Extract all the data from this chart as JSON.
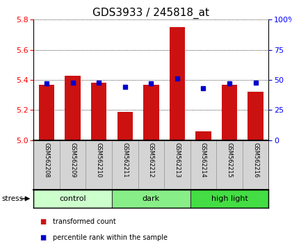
{
  "title": "GDS3933 / 245818_at",
  "samples": [
    "GSM562208",
    "GSM562209",
    "GSM562210",
    "GSM562211",
    "GSM562212",
    "GSM562213",
    "GSM562214",
    "GSM562215",
    "GSM562216"
  ],
  "transformed_count": [
    5.37,
    5.43,
    5.38,
    5.19,
    5.37,
    5.75,
    5.06,
    5.37,
    5.32
  ],
  "percentile_rank": [
    47,
    48,
    48,
    44,
    47,
    51,
    43,
    47,
    48
  ],
  "ylim_left": [
    5.0,
    5.8
  ],
  "ylim_right": [
    0,
    100
  ],
  "yticks_left": [
    5.0,
    5.2,
    5.4,
    5.6,
    5.8
  ],
  "yticks_right": [
    0,
    25,
    50,
    75,
    100
  ],
  "ytick_labels_right": [
    "0",
    "25",
    "50",
    "75",
    "100%"
  ],
  "groups": [
    {
      "label": "control",
      "indices": [
        0,
        1,
        2
      ],
      "color": "#ccffcc"
    },
    {
      "label": "dark",
      "indices": [
        3,
        4,
        5
      ],
      "color": "#88ee88"
    },
    {
      "label": "high light",
      "indices": [
        6,
        7,
        8
      ],
      "color": "#44dd44"
    }
  ],
  "bar_color": "#cc1111",
  "dot_color": "#0000cc",
  "bar_width": 0.6,
  "stress_label": "stress",
  "legend_items": [
    {
      "color": "#cc1111",
      "label": "transformed count"
    },
    {
      "color": "#0000cc",
      "label": "percentile rank within the sample"
    }
  ],
  "title_fontsize": 11,
  "tick_fontsize": 8,
  "background_color": "#ffffff"
}
